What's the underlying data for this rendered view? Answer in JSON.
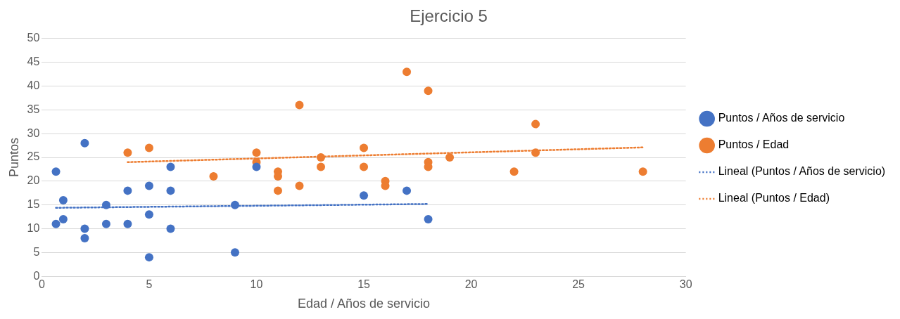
{
  "chart_data": {
    "type": "scatter",
    "title": "Ejercicio 5",
    "xlabel": "Edad / Años de servicio",
    "ylabel": "Puntos",
    "xlim": [
      0,
      30
    ],
    "xticks": [
      0,
      5,
      10,
      15,
      20,
      25,
      30
    ],
    "ylim": [
      0,
      50
    ],
    "yticks": [
      0,
      5,
      10,
      15,
      20,
      25,
      30,
      35,
      40,
      45,
      50
    ],
    "grid": "y",
    "legend": "right",
    "marker": "circle",
    "series": [
      {
        "name": "Puntos / Años de servicio",
        "color": "#4472c4",
        "x": [
          0.66,
          0.66,
          1,
          1,
          2,
          2,
          2,
          3,
          3,
          4,
          4,
          5,
          5,
          5,
          6,
          6,
          6,
          9,
          9,
          10,
          15,
          17,
          18
        ],
        "values": [
          22,
          11,
          16,
          12,
          28,
          10,
          8,
          15,
          11,
          18,
          11,
          19,
          13,
          4,
          23,
          18,
          10,
          15,
          5,
          23,
          17,
          18,
          12
        ]
      },
      {
        "name": "Puntos / Edad",
        "color": "#ed7d31",
        "x": [
          4,
          5,
          8,
          10,
          10,
          11,
          11,
          11,
          12,
          12,
          13,
          13,
          15,
          15,
          16,
          16,
          17,
          18,
          18,
          18,
          19,
          22,
          23,
          23,
          28
        ],
        "values": [
          26,
          27,
          21,
          26,
          24,
          22,
          21,
          18,
          36,
          19,
          25,
          23,
          27,
          23,
          20,
          19,
          43,
          39,
          24,
          23,
          25,
          22,
          32,
          26,
          22
        ]
      },
      {
        "name": "Lineal (Puntos / Años de servicio)",
        "type": "line",
        "marker": "none",
        "line_style": "dotted",
        "color": "#4472c4",
        "x": [
          0.66,
          18
        ],
        "values": [
          14.4,
          15.2
        ]
      },
      {
        "name": "Lineal (Puntos / Edad)",
        "type": "line",
        "marker": "none",
        "line_style": "dotted",
        "color": "#ed7d31",
        "x": [
          4,
          28
        ],
        "values": [
          24.0,
          27.1
        ]
      }
    ]
  }
}
